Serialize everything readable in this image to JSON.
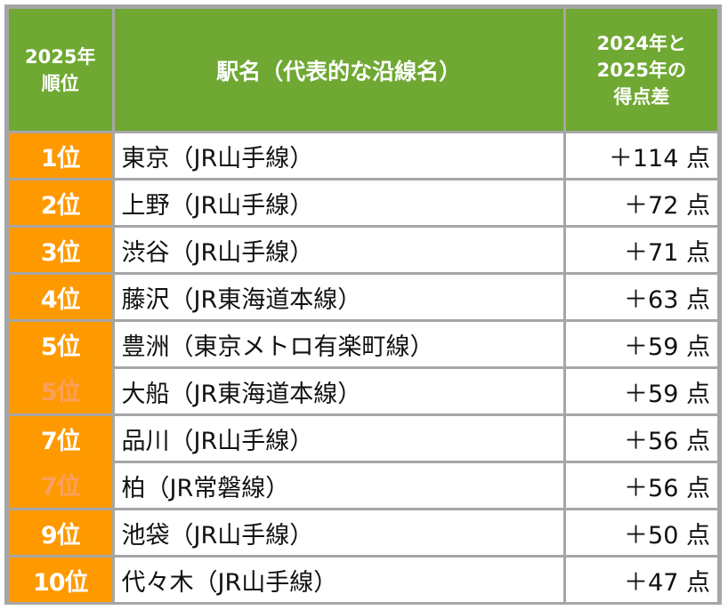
{
  "header": {
    "rank_col": "2025年\n順位",
    "rank_col_line1": "2025年",
    "rank_col_line2": "順位",
    "station_col": "駅名（代表的な沿線名）",
    "diff_col_line1": "2024年と",
    "diff_col_line2": "2025年の",
    "diff_col_line3": "得点差"
  },
  "colors": {
    "header_bg": "#6fa832",
    "rank_bg": "#ff9900",
    "grid": "#a6a6a6",
    "tied_rank_text": "#f9a06a"
  },
  "rows": [
    {
      "rank": "1位",
      "station": "東京（JR山手線）",
      "diff": "＋114 点"
    },
    {
      "rank": "2位",
      "station": "上野（JR山手線）",
      "diff": "＋72 点"
    },
    {
      "rank": "3位",
      "station": "渋谷（JR山手線）",
      "diff": "＋71 点"
    },
    {
      "rank": "4位",
      "station": "藤沢（JR東海道本線）",
      "diff": "＋63 点"
    },
    {
      "rank": "5位",
      "station": "豊洲（東京メトロ有楽町線）",
      "diff": "＋59 点"
    },
    {
      "rank": "5位",
      "station": "大船（JR東海道本線）",
      "diff": "＋59 点",
      "tied": true
    },
    {
      "rank": "7位",
      "station": "品川（JR山手線）",
      "diff": "＋56 点"
    },
    {
      "rank": "7位",
      "station": "柏（JR常磐線）",
      "diff": "＋56 点",
      "tied": true
    },
    {
      "rank": "9位",
      "station": "池袋（JR山手線）",
      "diff": "＋50 点"
    },
    {
      "rank": "10位",
      "station": "代々木（JR山手線）",
      "diff": "＋47 点"
    }
  ]
}
